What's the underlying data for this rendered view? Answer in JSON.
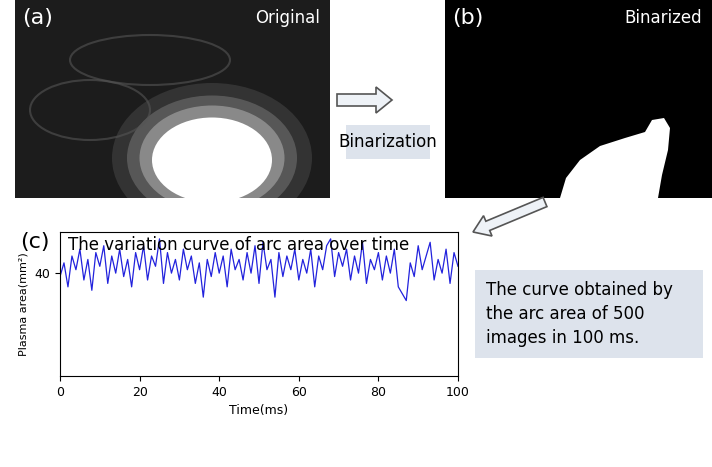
{
  "panels": {
    "a": {
      "label": "(a)",
      "title": "Original"
    },
    "b": {
      "label": "(b)",
      "title": "Binarized"
    },
    "c": {
      "label": "(c)"
    }
  },
  "arrow_label": "Binarization",
  "note": [
    "The curve obtained by",
    "the arc area of 500",
    "images in 100 ms."
  ],
  "chart_data": {
    "type": "line",
    "title": "The variation curve of arc area over time",
    "x_label": "Time(ms)",
    "y_label": "Plasma area(mm²)",
    "x": [
      0,
      1,
      2,
      3,
      4,
      5,
      6,
      7,
      8,
      9,
      10,
      11,
      12,
      13,
      14,
      15,
      16,
      17,
      18,
      19,
      20,
      21,
      22,
      23,
      24,
      25,
      26,
      27,
      28,
      29,
      30,
      31,
      32,
      33,
      34,
      35,
      36,
      37,
      38,
      39,
      40,
      41,
      42,
      43,
      44,
      45,
      46,
      47,
      48,
      49,
      50,
      51,
      52,
      53,
      54,
      55,
      56,
      57,
      58,
      59,
      60,
      61,
      62,
      63,
      64,
      65,
      66,
      67,
      68,
      69,
      70,
      71,
      72,
      73,
      74,
      75,
      76,
      77,
      78,
      79,
      80,
      81,
      82,
      83,
      84,
      85,
      86,
      87,
      88,
      89,
      90,
      91,
      92,
      93,
      94,
      95,
      96,
      97,
      98,
      99,
      100
    ],
    "values": [
      39,
      43,
      36,
      45,
      41,
      47,
      38,
      44,
      35,
      46,
      42,
      48,
      37,
      45,
      40,
      47,
      39,
      44,
      36,
      46,
      41,
      48,
      38,
      45,
      42,
      50,
      37,
      46,
      40,
      44,
      38,
      47,
      41,
      45,
      37,
      43,
      33,
      44,
      39,
      46,
      40,
      45,
      36,
      47,
      41,
      44,
      38,
      46,
      40,
      48,
      37,
      49,
      41,
      44,
      33,
      46,
      39,
      45,
      41,
      47,
      38,
      44,
      40,
      47,
      36,
      45,
      41,
      48,
      50,
      39,
      46,
      42,
      47,
      38,
      45,
      40,
      49,
      37,
      44,
      41,
      46,
      38,
      45,
      40,
      47,
      36,
      34,
      32,
      43,
      39,
      48,
      41,
      45,
      49,
      38,
      44,
      40,
      47,
      37,
      46,
      42
    ],
    "color": "#2222dd",
    "xlim": [
      0,
      100
    ],
    "xticks": [
      0,
      20,
      40,
      60,
      80,
      100
    ],
    "ylim": [
      10,
      52
    ],
    "yticks": [
      40
    ],
    "grid": false
  }
}
